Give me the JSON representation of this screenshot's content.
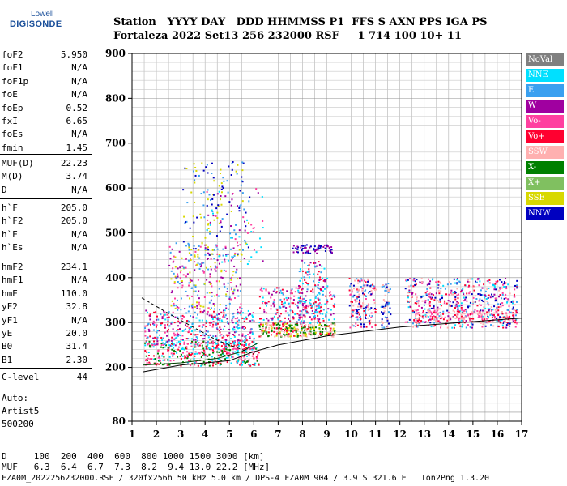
{
  "logo": {
    "line1": "Lowell",
    "line2": "DIGISONDE"
  },
  "header": {
    "row1": "Station   YYYY DAY   DDD HHMMSS P1  FFS S AXN PPS IGA PS",
    "row2": "Fortaleza 2022 Set13 256 232000 RSF     1 714 100 10+ 11"
  },
  "params": [
    {
      "name": "foF2",
      "value": "5.950"
    },
    {
      "name": "foF1",
      "value": "N/A"
    },
    {
      "name": "foF1p",
      "value": "N/A"
    },
    {
      "name": "foE",
      "value": "N/A"
    },
    {
      "name": "foEp",
      "value": "0.52"
    },
    {
      "name": "fxI",
      "value": "6.65"
    },
    {
      "name": "foEs",
      "value": "N/A"
    },
    {
      "name": "fmin",
      "value": "1.45"
    },
    {
      "name": "MUF(D)",
      "value": "22.23"
    },
    {
      "name": "M(D)",
      "value": "3.74"
    },
    {
      "name": "D",
      "value": "N/A"
    },
    {
      "name": "h`F",
      "value": "205.0"
    },
    {
      "name": "h`F2",
      "value": "205.0"
    },
    {
      "name": "h`E",
      "value": "N/A"
    },
    {
      "name": "h`Es",
      "value": "N/A"
    },
    {
      "name": "hmF2",
      "value": "234.1"
    },
    {
      "name": "hmF1",
      "value": "N/A"
    },
    {
      "name": "hmE",
      "value": "110.0"
    },
    {
      "name": "yF2",
      "value": "32.8"
    },
    {
      "name": "yF1",
      "value": "N/A"
    },
    {
      "name": "yE",
      "value": "20.0"
    },
    {
      "name": "B0",
      "value": "31.4"
    },
    {
      "name": "B1",
      "value": "2.30"
    },
    {
      "name": "C-level",
      "value": "44"
    }
  ],
  "auto": {
    "line1": "Auto:",
    "line2": "Artist5",
    "line3": "500200"
  },
  "legend": [
    {
      "label": "NoVal",
      "color": "#808080"
    },
    {
      "label": "NNE",
      "color": "#00e0ff"
    },
    {
      "label": "E",
      "color": "#3aa0f0"
    },
    {
      "label": "W",
      "color": "#a000a0"
    },
    {
      "label": "Vo-",
      "color": "#ff40a0"
    },
    {
      "label": "Vo+",
      "color": "#ff0030"
    },
    {
      "label": "SSW",
      "color": "#ffb0b0"
    },
    {
      "label": "X-",
      "color": "#008000"
    },
    {
      "label": "X+",
      "color": "#80c060"
    },
    {
      "label": "SSE",
      "color": "#d8d800"
    },
    {
      "label": "NNW",
      "color": "#0000c0"
    }
  ],
  "chart_data": {
    "type": "scatter",
    "xlim": [
      1,
      17
    ],
    "ylim": [
      80,
      900
    ],
    "xticks": [
      "1",
      "2",
      "3",
      "4",
      "5",
      "6",
      "7",
      "8",
      "9",
      "10",
      "11",
      "12",
      "13",
      "14",
      "15",
      "16",
      "17"
    ],
    "yticks": [
      "80",
      "200",
      "300",
      "400",
      "500",
      "600",
      "700",
      "800",
      "900"
    ],
    "grid": true,
    "legend_position": "right"
  },
  "bottom": {
    "d_row": "D     100  200  400  600  800 1000 1500 3000 [km]",
    "muf_row": "MUF   6.3  6.4  6.7  7.3  8.2  9.4 13.0 22.2 [MHz]"
  },
  "footer": "FZA0M_2022256232000.RSF / 320fx256h 50 kHz 5.0 km / DPS-4 FZA0M 904 / 3.9 S 321.6 E   Ion2Png 1.3.20"
}
